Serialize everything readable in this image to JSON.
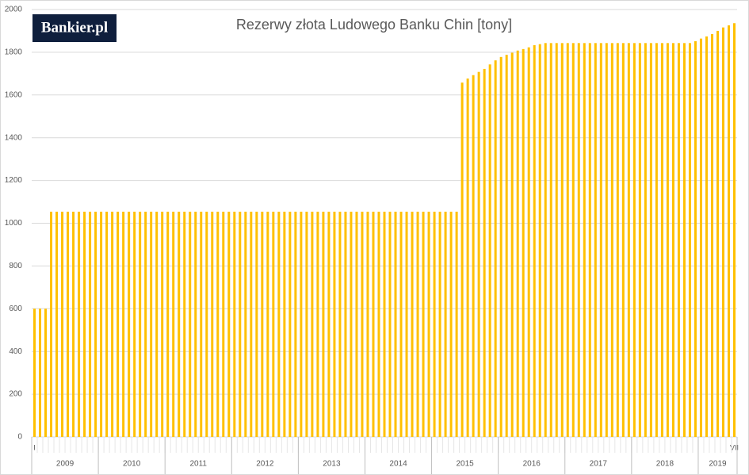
{
  "logo": "Bankier.pl",
  "chart_data": {
    "type": "bar",
    "title": "Rezerwy złota Ludowego Banku Chin [tony]",
    "categories": [
      "I",
      null,
      null,
      null,
      null,
      null,
      null,
      null,
      null,
      null,
      null,
      null,
      null,
      null,
      null,
      null,
      null,
      null,
      null,
      null,
      null,
      null,
      null,
      null,
      null,
      null,
      null,
      null,
      null,
      null,
      null,
      null,
      null,
      null,
      null,
      null,
      null,
      null,
      null,
      null,
      null,
      null,
      null,
      null,
      null,
      null,
      null,
      null,
      null,
      null,
      null,
      null,
      null,
      null,
      null,
      null,
      null,
      null,
      null,
      null,
      null,
      null,
      null,
      null,
      null,
      null,
      null,
      null,
      null,
      null,
      null,
      null,
      null,
      null,
      null,
      null,
      null,
      null,
      null,
      null,
      null,
      null,
      null,
      null,
      null,
      null,
      null,
      null,
      null,
      null,
      null,
      null,
      null,
      null,
      null,
      null,
      null,
      null,
      null,
      null,
      null,
      null,
      null,
      null,
      null,
      null,
      null,
      null,
      null,
      null,
      null,
      null,
      null,
      null,
      null,
      null,
      null,
      null,
      null,
      null,
      null,
      null,
      null,
      null,
      null,
      null,
      "VII"
    ],
    "years": [
      "2009",
      "2010",
      "2011",
      "2012",
      "2013",
      "2014",
      "2015",
      "2016",
      "2017",
      "2018",
      "2019"
    ],
    "values": [
      600,
      600,
      600,
      1054,
      1054,
      1054,
      1054,
      1054,
      1054,
      1054,
      1054,
      1054,
      1054,
      1054,
      1054,
      1054,
      1054,
      1054,
      1054,
      1054,
      1054,
      1054,
      1054,
      1054,
      1054,
      1054,
      1054,
      1054,
      1054,
      1054,
      1054,
      1054,
      1054,
      1054,
      1054,
      1054,
      1054,
      1054,
      1054,
      1054,
      1054,
      1054,
      1054,
      1054,
      1054,
      1054,
      1054,
      1054,
      1054,
      1054,
      1054,
      1054,
      1054,
      1054,
      1054,
      1054,
      1054,
      1054,
      1054,
      1054,
      1054,
      1054,
      1054,
      1054,
      1054,
      1054,
      1054,
      1054,
      1054,
      1054,
      1054,
      1054,
      1054,
      1054,
      1054,
      1054,
      1054,
      1658,
      1677,
      1693,
      1708,
      1722,
      1743,
      1762,
      1778,
      1788,
      1798,
      1808,
      1815,
      1823,
      1833,
      1838,
      1843,
      1843,
      1843,
      1843,
      1843,
      1843,
      1843,
      1843,
      1843,
      1843,
      1843,
      1843,
      1843,
      1843,
      1843,
      1843,
      1843,
      1843,
      1843,
      1843,
      1843,
      1843,
      1843,
      1843,
      1843,
      1843,
      1843,
      1852,
      1864,
      1874,
      1885,
      1900,
      1916,
      1926,
      1936
    ],
    "color": "#ffc000",
    "ylim": [
      0,
      2000
    ],
    "yticks": [
      0,
      200,
      400,
      600,
      800,
      1000,
      1200,
      1400,
      1600,
      1800,
      2000
    ],
    "grid": true
  }
}
